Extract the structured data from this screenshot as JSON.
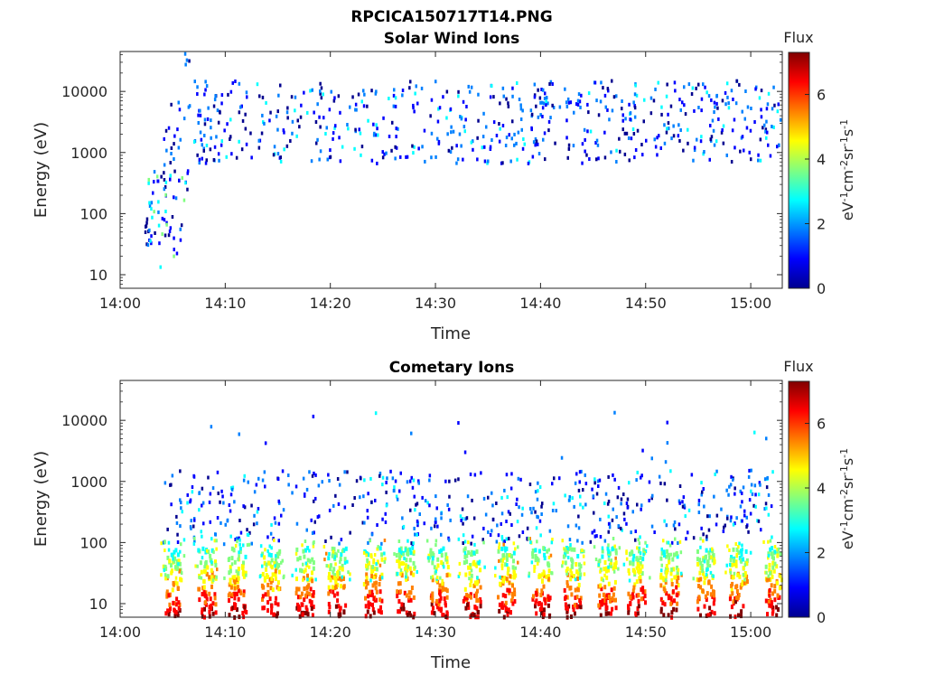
{
  "figure_title": "RPCICA150717T14.PNG",
  "chart_data": [
    {
      "type": "heatmap",
      "title": "Solar Wind Ions",
      "xlabel": "Time",
      "ylabel": "Energy (eV)",
      "xlim": [
        "14:00",
        "15:03"
      ],
      "ylim": [
        6,
        45000
      ],
      "yscale": "log",
      "xticks": [
        "14:00",
        "14:10",
        "14:20",
        "14:30",
        "14:40",
        "14:50",
        "15:00"
      ],
      "yticks": [
        "10",
        "100",
        "1000",
        "10000"
      ],
      "colorbar": {
        "label": "Flux",
        "unit": "eV-1cm-2sr-1s-1",
        "range": [
          0,
          7.3
        ],
        "ticks": [
          "0",
          "2",
          "4",
          "6"
        ]
      },
      "colormap": [
        "#00008f",
        "#0000ff",
        "#0080ff",
        "#00ffff",
        "#80ff80",
        "#ffff00",
        "#ff8000",
        "#ff0000",
        "#800000"
      ],
      "grid": false
    },
    {
      "type": "heatmap",
      "title": "Cometary Ions",
      "xlabel": "Time",
      "ylabel": "Energy (eV)",
      "xlim": [
        "14:00",
        "15:03"
      ],
      "ylim": [
        6,
        45000
      ],
      "yscale": "log",
      "xticks": [
        "14:00",
        "14:10",
        "14:20",
        "14:30",
        "14:40",
        "14:50",
        "15:00"
      ],
      "yticks": [
        "10",
        "100",
        "1000",
        "10000"
      ],
      "colorbar": {
        "label": "Flux",
        "unit": "eV-1cm-2sr-1s-1",
        "range": [
          0,
          7.3
        ],
        "ticks": [
          "0",
          "2",
          "4",
          "6"
        ]
      },
      "colormap": [
        "#00008f",
        "#0000ff",
        "#0080ff",
        "#00ffff",
        "#80ff80",
        "#ffff00",
        "#ff8000",
        "#ff0000",
        "#800000"
      ],
      "grid": false
    }
  ]
}
